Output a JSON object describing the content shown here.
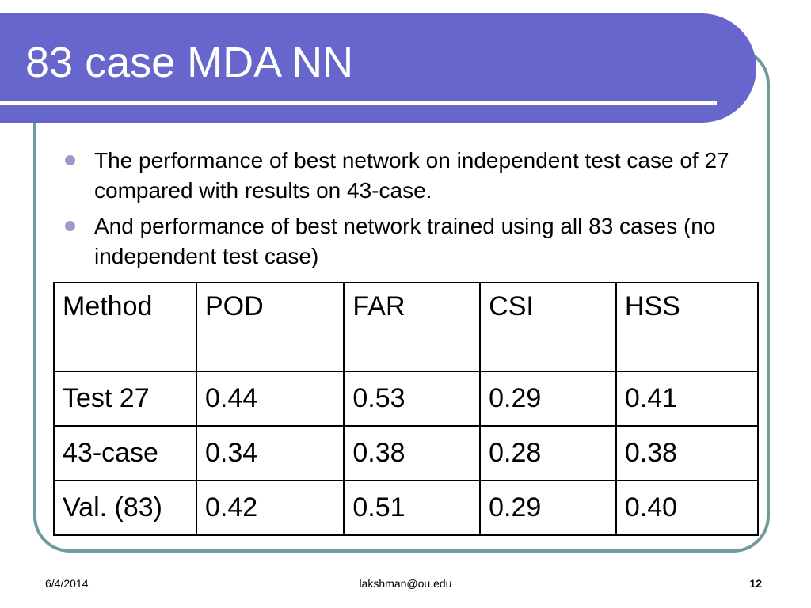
{
  "slide": {
    "title": "83 case MDA NN",
    "bullets": [
      "The performance of best network on independent test case of 27 compared with results on 43-case.",
      "And performance of best network trained using all 83 cases (no independent test case)"
    ],
    "table": {
      "headers": [
        "Method",
        "POD",
        "FAR",
        "CSI",
        "HSS"
      ],
      "rows": [
        [
          "Test 27",
          "0.44",
          "0.53",
          "0.29",
          "0.41"
        ],
        [
          "43-case",
          "0.34",
          "0.38",
          "0.28",
          "0.38"
        ],
        [
          "Val. (83)",
          "0.42",
          "0.51",
          "0.29",
          "0.40"
        ]
      ]
    }
  },
  "footer": {
    "date": "6/4/2014",
    "author": "lakshman@ou.edu",
    "page": "12"
  },
  "colors": {
    "title_bar": "#6666cc",
    "frame_border": "#6f9b9b",
    "bullet": "#9a9ac4"
  }
}
